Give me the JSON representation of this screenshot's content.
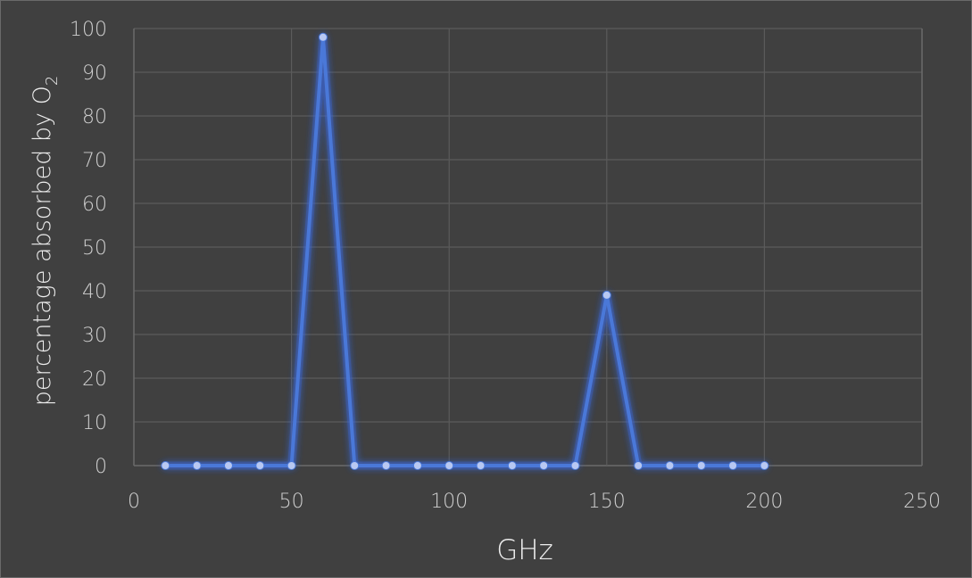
{
  "chart_data": {
    "type": "scatter",
    "title": "",
    "xlabel": "GHz",
    "ylabel_text": "percentage absorbed  by O",
    "ylabel_subscript": "2",
    "xlim": [
      0,
      250
    ],
    "ylim": [
      0,
      100
    ],
    "x_ticks": [
      0,
      50,
      100,
      150,
      200,
      250
    ],
    "y_ticks": [
      0,
      10,
      20,
      30,
      40,
      50,
      60,
      70,
      80,
      90,
      100
    ],
    "grid": true,
    "legend": "none",
    "series": [
      {
        "x": [
          10,
          20,
          30,
          40,
          50,
          60,
          70,
          80,
          90,
          100,
          110,
          120,
          130,
          140,
          150,
          160,
          170,
          180,
          190,
          200
        ],
        "y": [
          0,
          0,
          0,
          0,
          0,
          98,
          0,
          0,
          0,
          0,
          0,
          0,
          0,
          0,
          39,
          0,
          0,
          0,
          0,
          0
        ],
        "color": "#4a78d8",
        "marker_color": "#b8c8f2",
        "glow_color": "#3a66d6"
      }
    ],
    "background_color": "#404040"
  }
}
